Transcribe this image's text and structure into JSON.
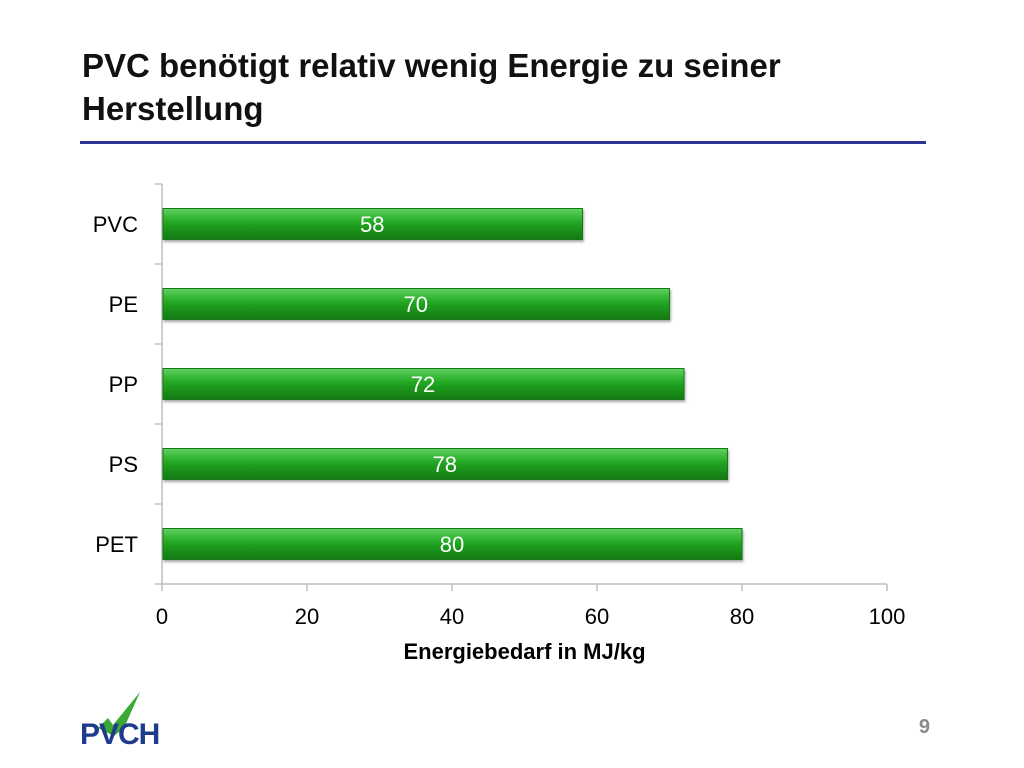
{
  "slide": {
    "title": "PVC benötigt relativ wenig Energie zu seiner Herstellung",
    "page_number": "9",
    "logo_text": "PVCH"
  },
  "colors": {
    "title_rule": "#2b3593",
    "bar_fill": "#22a722",
    "bar_dark": "#127812",
    "axis": "#bfbfbf",
    "logo_blue": "#1f3b8e",
    "logo_green": "#3aaa35"
  },
  "chart_data": {
    "type": "bar",
    "orientation": "horizontal",
    "categories": [
      "PVC",
      "PE",
      "PP",
      "PS",
      "PET"
    ],
    "values": [
      58,
      70,
      72,
      78,
      80
    ],
    "data_labels": [
      "58",
      "70",
      "72",
      "78",
      "80"
    ],
    "xlabel": "Energiebedarf in MJ/kg",
    "xlim": [
      0,
      100
    ],
    "xticks": [
      0,
      20,
      40,
      60,
      80,
      100
    ],
    "xtick_labels": [
      "0",
      "20",
      "40",
      "60",
      "80",
      "100"
    ],
    "grid": false,
    "legend": "none"
  }
}
